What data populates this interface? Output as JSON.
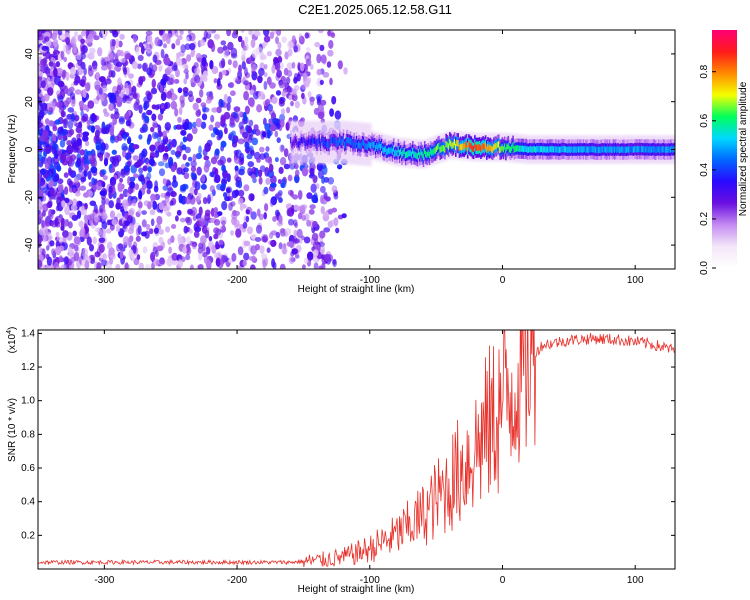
{
  "figure": {
    "title": "C2E1.2025.065.12.58.G11"
  },
  "colors": {
    "snr_line": "#e8322c",
    "colorbar_stops": [
      "#ffffff",
      "#f3e6f8",
      "#c48bf2",
      "#6a0fe0",
      "#2a0aff",
      "#0068ff",
      "#00d8ff",
      "#00ff5a",
      "#f6ff00",
      "#ff8a00",
      "#ff1a1a",
      "#ff0077"
    ]
  },
  "chart_data": [
    {
      "type": "heatmap",
      "xlabel": "Height of straight line (km)",
      "ylabel": "Frequency (Hz)",
      "xlim": [
        -350,
        130
      ],
      "ylim": [
        -50,
        50
      ],
      "xticks": [
        -300,
        -200,
        -100,
        0,
        100
      ],
      "yticks": [
        -40,
        -20,
        0,
        20,
        40
      ],
      "grid": false,
      "colorbar": {
        "label": "Normalized spectral amplitude",
        "range": [
          0,
          0.97
        ],
        "ticks": [
          0.0,
          0.2,
          0.4,
          0.6,
          0.8
        ]
      },
      "ridge": {
        "x": [
          -160,
          -140,
          -120,
          -100,
          -80,
          -60,
          -40,
          -20,
          0,
          20,
          60,
          130
        ],
        "center_frequency": [
          3,
          3,
          3,
          2,
          -1,
          -2,
          2,
          1,
          1,
          0,
          0,
          0
        ],
        "peak_amplitude": [
          0.3,
          0.4,
          0.45,
          0.5,
          0.55,
          0.6,
          0.7,
          0.9,
          0.65,
          0.55,
          0.5,
          0.48
        ]
      }
    },
    {
      "type": "line",
      "xlabel": "Height of straight line (km)",
      "ylabel": "SNR (10 * v/v)",
      "ylabel_multiplier": "(x10",
      "ylabel_multiplier_exp": "4",
      "xlim": [
        -350,
        130
      ],
      "ylim": [
        0,
        1.42
      ],
      "xticks": [
        -300,
        -200,
        -100,
        0,
        100
      ],
      "yticks": [
        0.2,
        0.4,
        0.6,
        0.8,
        1.0,
        1.2,
        1.4
      ],
      "grid": false,
      "series": [
        {
          "x": [
            -350,
            -300,
            -250,
            -200,
            -160,
            -140,
            -120,
            -100,
            -80,
            -60,
            -40,
            -20,
            0,
            10,
            20,
            30,
            50,
            70,
            90,
            110,
            130
          ],
          "y": [
            0.04,
            0.04,
            0.04,
            0.04,
            0.04,
            0.05,
            0.07,
            0.12,
            0.2,
            0.32,
            0.5,
            0.72,
            0.98,
            1.12,
            1.24,
            1.33,
            1.36,
            1.37,
            1.36,
            1.34,
            1.3
          ]
        }
      ]
    }
  ]
}
